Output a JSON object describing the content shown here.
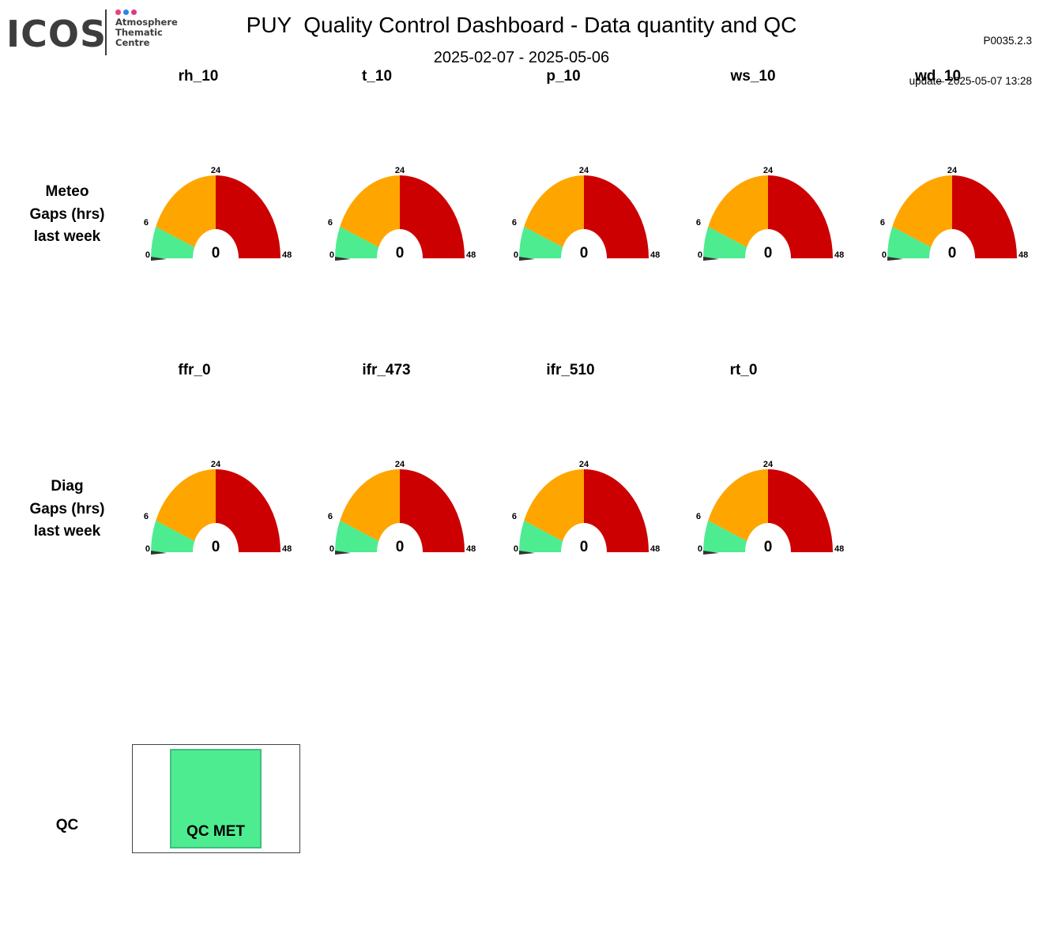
{
  "header": {
    "logo_text": "ICOS",
    "logo_subtitle": [
      "Atmosphere",
      "Thematic",
      "Centre"
    ],
    "logo_dot_colors": [
      "#e8407a",
      "#2b86e3",
      "#d93a8c"
    ],
    "title": "PUY  Quality Control Dashboard - Data quantity and QC",
    "date_range": "2025-02-07 - 2025-05-06",
    "version": "P0035.2.3",
    "update": "update  2025-05-07 13:28"
  },
  "colors": {
    "good": "#4eec91",
    "warn": "#ffa500",
    "bad": "#cc0000",
    "needle": "#333333",
    "qc_met": "#4eec91"
  },
  "rows": {
    "meteo_label": [
      "Meteo",
      "Gaps (hrs)",
      "last week"
    ],
    "diag_label": [
      "Diag",
      "Gaps (hrs)",
      "last week"
    ],
    "qc_label": "QC"
  },
  "chart_data": [
    {
      "type": "gauge",
      "row": "Meteo",
      "unit": "Gaps (hrs) last week",
      "range": [
        0,
        48
      ],
      "ticks": [
        "0",
        "6",
        "24",
        "48"
      ],
      "bands": [
        {
          "from": 0,
          "to": 6,
          "color": "#4eec91"
        },
        {
          "from": 6,
          "to": 24,
          "color": "#ffa500"
        },
        {
          "from": 24,
          "to": 48,
          "color": "#cc0000"
        }
      ],
      "series": [
        {
          "name": "rh_10",
          "value": 0
        },
        {
          "name": "t_10",
          "value": 0
        },
        {
          "name": "p_10",
          "value": 0
        },
        {
          "name": "ws_10",
          "value": 0
        },
        {
          "name": "wd_10",
          "value": 0
        }
      ]
    },
    {
      "type": "gauge",
      "row": "Diag",
      "unit": "Gaps (hrs) last week",
      "range": [
        0,
        48
      ],
      "ticks": [
        "0",
        "6",
        "24",
        "48"
      ],
      "bands": [
        {
          "from": 0,
          "to": 6,
          "color": "#4eec91"
        },
        {
          "from": 6,
          "to": 24,
          "color": "#ffa500"
        },
        {
          "from": 24,
          "to": 48,
          "color": "#cc0000"
        }
      ],
      "series": [
        {
          "name": "ffr_0",
          "value": 0
        },
        {
          "name": "ifr_473",
          "value": 0
        },
        {
          "name": "ifr_510",
          "value": 0
        },
        {
          "name": "rt_0",
          "value": 0
        }
      ]
    }
  ],
  "qc": {
    "status": "QC MET"
  }
}
